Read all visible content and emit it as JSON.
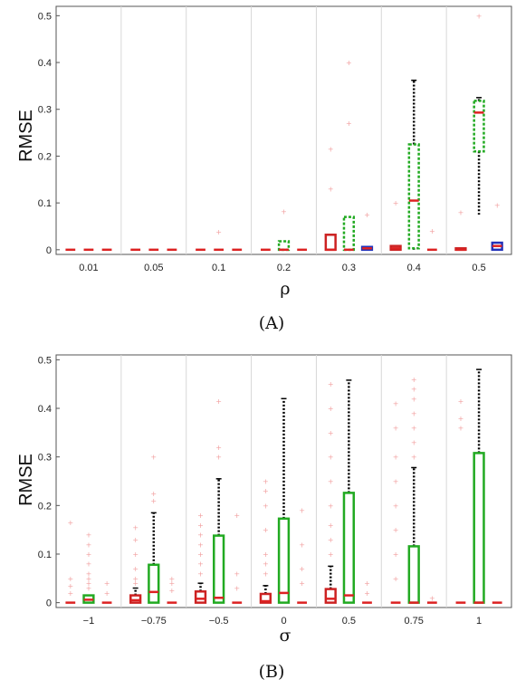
{
  "chart_data": [
    {
      "type": "box",
      "caption": "(A)",
      "xlabel": "ρ",
      "ylabel": "RMSE",
      "ylim": [
        -0.01,
        0.52
      ],
      "yticks": [
        "0",
        "0.1",
        "0.2",
        "0.3",
        "0.4",
        "0.5"
      ],
      "categories": [
        "0.01",
        "0.05",
        "0.1",
        "0.2",
        "0.3",
        "0.4",
        "0.5"
      ],
      "grid": "vertical separators between categories",
      "series_colors": [
        "#cc2222",
        "#22aa22",
        "#2233bb"
      ],
      "boxes": [
        [
          {
            "q1": 0,
            "med": 0,
            "q3": 0,
            "wlo": 0,
            "whi": 0,
            "out": []
          },
          {
            "q1": 0,
            "med": 0,
            "q3": 0,
            "wlo": 0,
            "whi": 0,
            "out": []
          },
          {
            "q1": 0,
            "med": 0,
            "q3": 0,
            "wlo": 0,
            "whi": 0,
            "out": []
          }
        ],
        [
          {
            "q1": 0,
            "med": 0,
            "q3": 0,
            "wlo": 0,
            "whi": 0,
            "out": []
          },
          {
            "q1": 0,
            "med": 0,
            "q3": 0,
            "wlo": 0,
            "whi": 0,
            "out": []
          },
          {
            "q1": 0,
            "med": 0,
            "q3": 0,
            "wlo": 0,
            "whi": 0,
            "out": []
          }
        ],
        [
          {
            "q1": 0,
            "med": 0,
            "q3": 0,
            "wlo": 0,
            "whi": 0,
            "out": []
          },
          {
            "q1": 0,
            "med": 0,
            "q3": 0,
            "wlo": 0,
            "whi": 0,
            "out": [
              0.038
            ]
          },
          {
            "q1": 0,
            "med": 0,
            "q3": 0,
            "wlo": 0,
            "whi": 0,
            "out": []
          }
        ],
        [
          {
            "q1": 0,
            "med": 0,
            "q3": 0,
            "wlo": 0,
            "whi": 0,
            "out": []
          },
          {
            "q1": 0,
            "med": 0,
            "q3": 0.018,
            "wlo": 0,
            "whi": 0.018,
            "out": [
              0.082
            ]
          },
          {
            "q1": 0,
            "med": 0,
            "q3": 0,
            "wlo": 0,
            "whi": 0,
            "out": []
          }
        ],
        [
          {
            "q1": 0,
            "med": 0,
            "q3": 0.032,
            "wlo": 0,
            "whi": 0.032,
            "out": [
              0.13,
              0.215
            ]
          },
          {
            "q1": 0,
            "med": 0,
            "q3": 0.07,
            "wlo": 0,
            "whi": 0.07,
            "out": [
              0.27,
              0.4
            ]
          },
          {
            "q1": 0,
            "med": 0.003,
            "q3": 0.006,
            "wlo": 0,
            "whi": 0.006,
            "out": [
              0.075
            ]
          }
        ],
        [
          {
            "q1": 0,
            "med": 0.003,
            "q3": 0.008,
            "wlo": 0,
            "whi": 0.008,
            "out": [
              0.1
            ]
          },
          {
            "q1": 0.003,
            "med": 0.105,
            "q3": 0.225,
            "wlo": 0,
            "whi": 0.362,
            "out": []
          },
          {
            "q1": 0,
            "med": 0,
            "q3": 0,
            "wlo": 0,
            "whi": 0,
            "out": [
              0.04
            ]
          }
        ],
        [
          {
            "q1": 0,
            "med": 0,
            "q3": 0.003,
            "wlo": 0,
            "whi": 0.003,
            "out": [
              0.08
            ]
          },
          {
            "q1": 0.21,
            "med": 0.293,
            "q3": 0.318,
            "wlo": 0.075,
            "whi": 0.325,
            "out": [
              0.5
            ]
          },
          {
            "q1": 0,
            "med": 0.008,
            "q3": 0.015,
            "wlo": 0,
            "whi": 0.015,
            "out": [
              0.095
            ]
          }
        ]
      ]
    },
    {
      "type": "box",
      "caption": "(B)",
      "xlabel": "σ",
      "ylabel": "RMSE",
      "ylim": [
        -0.01,
        0.51
      ],
      "yticks": [
        "0",
        "0.1",
        "0.2",
        "0.3",
        "0.4",
        "0.5"
      ],
      "categories": [
        "−1",
        "−0.75",
        "−0.5",
        "0",
        "0.5",
        "0.75",
        "1"
      ],
      "grid": "vertical separators between categories",
      "series_colors": [
        "#cc2222",
        "#22aa22",
        "#2233bb"
      ],
      "boxes": [
        [
          {
            "q1": 0,
            "med": 0,
            "q3": 0,
            "wlo": 0,
            "whi": 0,
            "out": [
              0.165,
              0.05,
              0.035,
              0.02
            ]
          },
          {
            "q1": 0,
            "med": 0.006,
            "q3": 0.015,
            "wlo": 0,
            "whi": 0.015,
            "out": [
              0.14,
              0.12,
              0.1,
              0.08,
              0.06,
              0.05,
              0.04,
              0.03
            ]
          },
          {
            "q1": 0,
            "med": 0,
            "q3": 0,
            "wlo": 0,
            "whi": 0,
            "out": [
              0.04,
              0.02
            ]
          }
        ],
        [
          {
            "q1": 0,
            "med": 0.005,
            "q3": 0.015,
            "wlo": 0,
            "whi": 0.03,
            "out": [
              0.155,
              0.13,
              0.1,
              0.07,
              0.05,
              0.04
            ]
          },
          {
            "q1": 0,
            "med": 0.022,
            "q3": 0.078,
            "wlo": 0,
            "whi": 0.185,
            "out": [
              0.3,
              0.225,
              0.21
            ]
          },
          {
            "q1": 0,
            "med": 0,
            "q3": 0,
            "wlo": 0,
            "whi": 0,
            "out": [
              0.05,
              0.04,
              0.025
            ]
          }
        ],
        [
          {
            "q1": 0,
            "med": 0.008,
            "q3": 0.023,
            "wlo": 0,
            "whi": 0.04,
            "out": [
              0.18,
              0.16,
              0.14,
              0.12,
              0.1,
              0.08,
              0.06
            ]
          },
          {
            "q1": 0,
            "med": 0.01,
            "q3": 0.138,
            "wlo": 0,
            "whi": 0.255,
            "out": [
              0.415,
              0.32,
              0.3
            ]
          },
          {
            "q1": 0,
            "med": 0,
            "q3": 0,
            "wlo": 0,
            "whi": 0,
            "out": [
              0.18,
              0.06,
              0.03
            ]
          }
        ],
        [
          {
            "q1": 0,
            "med": 0.003,
            "q3": 0.018,
            "wlo": 0,
            "whi": 0.035,
            "out": [
              0.25,
              0.23,
              0.2,
              0.15,
              0.1,
              0.08,
              0.06
            ]
          },
          {
            "q1": 0,
            "med": 0.02,
            "q3": 0.173,
            "wlo": 0,
            "whi": 0.42,
            "out": []
          },
          {
            "q1": 0,
            "med": 0,
            "q3": 0,
            "wlo": 0,
            "whi": 0,
            "out": [
              0.19,
              0.12,
              0.07,
              0.04
            ]
          }
        ],
        [
          {
            "q1": 0,
            "med": 0.008,
            "q3": 0.028,
            "wlo": 0,
            "whi": 0.075,
            "out": [
              0.45,
              0.4,
              0.35,
              0.3,
              0.25,
              0.2,
              0.16,
              0.13,
              0.1
            ]
          },
          {
            "q1": 0,
            "med": 0.015,
            "q3": 0.226,
            "wlo": 0,
            "whi": 0.458,
            "out": []
          },
          {
            "q1": 0,
            "med": 0,
            "q3": 0,
            "wlo": 0,
            "whi": 0,
            "out": [
              0.04,
              0.02
            ]
          }
        ],
        [
          {
            "q1": 0,
            "med": 0,
            "q3": 0,
            "wlo": 0,
            "whi": 0,
            "out": [
              0.41,
              0.36,
              0.3,
              0.25,
              0.2,
              0.15,
              0.1,
              0.05
            ]
          },
          {
            "q1": 0,
            "med": 0,
            "q3": 0.116,
            "wlo": 0,
            "whi": 0.278,
            "out": [
              0.46,
              0.44,
              0.42,
              0.39,
              0.36,
              0.33,
              0.3
            ]
          },
          {
            "q1": 0,
            "med": 0,
            "q3": 0,
            "wlo": 0,
            "whi": 0,
            "out": [
              0.01
            ]
          }
        ],
        [
          {
            "q1": 0,
            "med": 0,
            "q3": 0,
            "wlo": 0,
            "whi": 0,
            "out": [
              0.415,
              0.38,
              0.36
            ]
          },
          {
            "q1": 0,
            "med": 0,
            "q3": 0.308,
            "wlo": 0,
            "whi": 0.48,
            "out": []
          },
          {
            "q1": 0,
            "med": 0,
            "q3": 0,
            "wlo": 0,
            "whi": 0,
            "out": []
          }
        ]
      ]
    }
  ]
}
